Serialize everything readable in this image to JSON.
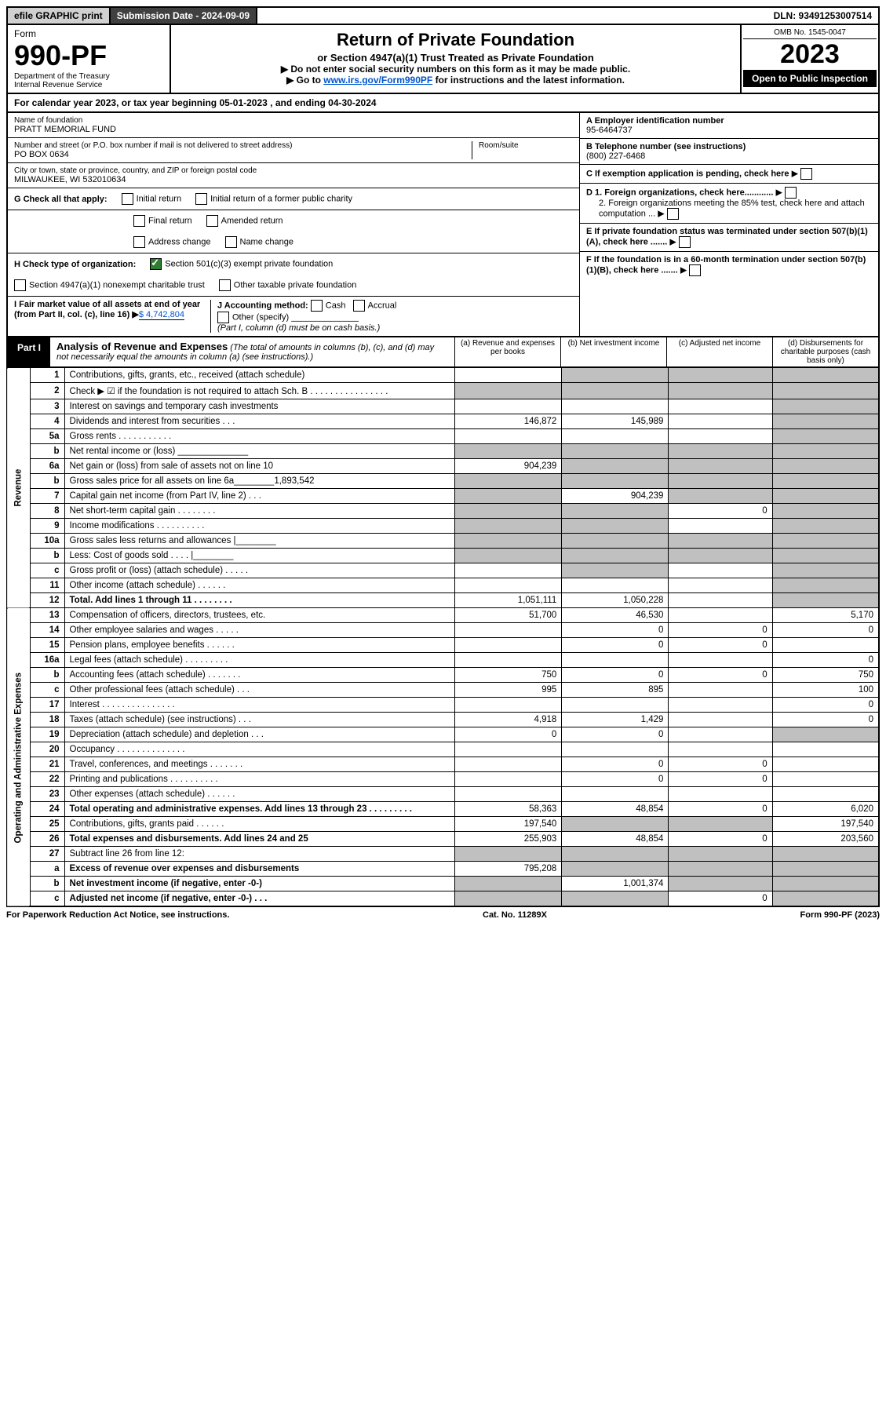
{
  "topbar": {
    "efile": "efile GRAPHIC print",
    "subm_label": "Submission Date - 2024-09-09",
    "dln": "DLN: 93491253007514"
  },
  "header": {
    "form_word": "Form",
    "form_num": "990-PF",
    "dept": "Department of the Treasury",
    "irs": "Internal Revenue Service",
    "title": "Return of Private Foundation",
    "subtitle": "or Section 4947(a)(1) Trust Treated as Private Foundation",
    "warn1": "▶ Do not enter social security numbers on this form as it may be made public.",
    "warn2_pre": "▶ Go to ",
    "warn2_link": "www.irs.gov/Form990PF",
    "warn2_post": " for instructions and the latest information.",
    "omb": "OMB No. 1545-0047",
    "year": "2023",
    "open_pub": "Open to Public Inspection"
  },
  "calyear": "For calendar year 2023, or tax year beginning 05-01-2023            , and ending 04-30-2024",
  "info": {
    "name_lbl": "Name of foundation",
    "name": "PRATT MEMORIAL FUND",
    "addr_lbl": "Number and street (or P.O. box number if mail is not delivered to street address)",
    "addr": "PO BOX 0634",
    "room_lbl": "Room/suite",
    "city_lbl": "City or town, state or province, country, and ZIP or foreign postal code",
    "city": "MILWAUKEE, WI  532010634",
    "a_lbl": "A Employer identification number",
    "a_val": "95-6464737",
    "b_lbl": "B Telephone number (see instructions)",
    "b_val": "(800) 227-6468",
    "c_lbl": "C If exemption application is pending, check here",
    "d1": "D 1. Foreign organizations, check here............",
    "d2": "2. Foreign organizations meeting the 85% test, check here and attach computation ...",
    "e": "E  If private foundation status was terminated under section 507(b)(1)(A), check here .......",
    "f": "F  If the foundation is in a 60-month termination under section 507(b)(1)(B), check here .......",
    "g_lbl": "G Check all that apply:",
    "g_opts": [
      "Initial return",
      "Initial return of a former public charity",
      "Final return",
      "Amended return",
      "Address change",
      "Name change"
    ],
    "h_lbl": "H Check type of organization:",
    "h1": "Section 501(c)(3) exempt private foundation",
    "h2": "Section 4947(a)(1) nonexempt charitable trust",
    "h3": "Other taxable private foundation",
    "i_lbl": "I Fair market value of all assets at end of year (from Part II, col. (c), line 16)",
    "i_val": "$  4,742,804",
    "j_lbl": "J Accounting method:",
    "j_opts": [
      "Cash",
      "Accrual"
    ],
    "j_other": "Other (specify)",
    "j_note": "(Part I, column (d) must be on cash basis.)"
  },
  "part1": {
    "tag": "Part I",
    "title": "Analysis of Revenue and Expenses",
    "subtitle": "(The total of amounts in columns (b), (c), and (d) may not necessarily equal the amounts in column (a) (see instructions).)",
    "cols": [
      "(a)   Revenue and expenses per books",
      "(b)   Net investment income",
      "(c)   Adjusted net income",
      "(d)   Disbursements for charitable purposes (cash basis only)"
    ]
  },
  "sections": {
    "rev": "Revenue",
    "ops": "Operating and Administrative Expenses"
  },
  "rows": [
    {
      "n": "1",
      "d": "Contributions, gifts, grants, etc., received (attach schedule)",
      "a": "",
      "b": "g",
      "c": "g",
      "dd": "g"
    },
    {
      "n": "2",
      "d": "Check ▶ ☑ if the foundation is not required to attach Sch. B      .  .  .  .  .  .  .  .  .  .  .  .  .  .  .  .",
      "a": "g",
      "b": "g",
      "c": "g",
      "dd": "g"
    },
    {
      "n": "3",
      "d": "Interest on savings and temporary cash investments",
      "a": "",
      "b": "",
      "c": "",
      "dd": "g"
    },
    {
      "n": "4",
      "d": "Dividends and interest from securities    .    .    .",
      "a": "146,872",
      "b": "145,989",
      "c": "",
      "dd": "g"
    },
    {
      "n": "5a",
      "d": "Gross rents     .    .    .    .    .    .    .    .    .    .    .",
      "a": "",
      "b": "",
      "c": "",
      "dd": "g"
    },
    {
      "n": "b",
      "d": "Net rental income or (loss)  ______________",
      "a": "g",
      "b": "g",
      "c": "g",
      "dd": "g"
    },
    {
      "n": "6a",
      "d": "Net gain or (loss) from sale of assets not on line 10",
      "a": "904,239",
      "b": "g",
      "c": "g",
      "dd": "g"
    },
    {
      "n": "b",
      "d": "Gross sales price for all assets on line 6a________1,893,542",
      "a": "g",
      "b": "g",
      "c": "g",
      "dd": "g"
    },
    {
      "n": "7",
      "d": "Capital gain net income (from Part IV, line 2)   .   .   .",
      "a": "g",
      "b": "904,239",
      "c": "g",
      "dd": "g"
    },
    {
      "n": "8",
      "d": "Net short-term capital gain  .   .   .   .   .   .   .   .",
      "a": "g",
      "b": "g",
      "c": "0",
      "dd": "g"
    },
    {
      "n": "9",
      "d": "Income modifications .   .   .   .   .   .   .   .   .   .",
      "a": "g",
      "b": "g",
      "c": "",
      "dd": "g"
    },
    {
      "n": "10a",
      "d": "Gross sales less returns and allowances  |________",
      "a": "g",
      "b": "g",
      "c": "g",
      "dd": "g"
    },
    {
      "n": "b",
      "d": "Less: Cost of goods sold    .   .   .   .   |________",
      "a": "g",
      "b": "g",
      "c": "g",
      "dd": "g"
    },
    {
      "n": "c",
      "d": "Gross profit or (loss) (attach schedule)   .   .   .   .   .",
      "a": "",
      "b": "g",
      "c": "",
      "dd": "g"
    },
    {
      "n": "11",
      "d": "Other income (attach schedule)   .   .   .   .   .   .",
      "a": "",
      "b": "",
      "c": "",
      "dd": "g"
    },
    {
      "n": "12",
      "d": "Total. Add lines 1 through 11  .   .   .   .   .   .   .   .",
      "a": "1,051,111",
      "b": "1,050,228",
      "c": "",
      "dd": "g",
      "bold": true
    },
    {
      "n": "13",
      "d": "Compensation of officers, directors, trustees, etc.",
      "a": "51,700",
      "b": "46,530",
      "c": "",
      "dd": "5,170"
    },
    {
      "n": "14",
      "d": "Other employee salaries and wages   .   .   .   .   .",
      "a": "",
      "b": "0",
      "c": "0",
      "dd": "0"
    },
    {
      "n": "15",
      "d": "Pension plans, employee benefits  .   .   .   .   .   .",
      "a": "",
      "b": "0",
      "c": "0",
      "dd": ""
    },
    {
      "n": "16a",
      "d": "Legal fees (attach schedule) .   .   .   .   .   .   .   .   .",
      "a": "",
      "b": "",
      "c": "",
      "dd": "0"
    },
    {
      "n": "b",
      "d": "Accounting fees (attach schedule) .   .   .   .   .   .   .",
      "a": "750",
      "b": "0",
      "c": "0",
      "dd": "750"
    },
    {
      "n": "c",
      "d": "Other professional fees (attach schedule)   .   .   .",
      "a": "995",
      "b": "895",
      "c": "",
      "dd": "100"
    },
    {
      "n": "17",
      "d": "Interest .   .   .   .   .   .   .   .   .   .   .   .   .   .   .",
      "a": "",
      "b": "",
      "c": "",
      "dd": "0"
    },
    {
      "n": "18",
      "d": "Taxes (attach schedule) (see instructions)    .   .   .",
      "a": "4,918",
      "b": "1,429",
      "c": "",
      "dd": "0"
    },
    {
      "n": "19",
      "d": "Depreciation (attach schedule) and depletion   .   .   .",
      "a": "0",
      "b": "0",
      "c": "",
      "dd": "g"
    },
    {
      "n": "20",
      "d": "Occupancy .   .   .   .   .   .   .   .   .   .   .   .   .   .",
      "a": "",
      "b": "",
      "c": "",
      "dd": ""
    },
    {
      "n": "21",
      "d": "Travel, conferences, and meetings .   .   .   .   .   .   .",
      "a": "",
      "b": "0",
      "c": "0",
      "dd": ""
    },
    {
      "n": "22",
      "d": "Printing and publications .   .   .   .   .   .   .   .   .   .",
      "a": "",
      "b": "0",
      "c": "0",
      "dd": ""
    },
    {
      "n": "23",
      "d": "Other expenses (attach schedule)  .   .   .   .   .   .",
      "a": "",
      "b": "",
      "c": "",
      "dd": ""
    },
    {
      "n": "24",
      "d": "Total operating and administrative expenses. Add lines 13 through 23  .   .   .   .   .   .   .   .   .",
      "a": "58,363",
      "b": "48,854",
      "c": "0",
      "dd": "6,020",
      "bold": true
    },
    {
      "n": "25",
      "d": "Contributions, gifts, grants paid    .   .   .   .   .   .",
      "a": "197,540",
      "b": "g",
      "c": "g",
      "dd": "197,540"
    },
    {
      "n": "26",
      "d": "Total expenses and disbursements. Add lines 24 and 25",
      "a": "255,903",
      "b": "48,854",
      "c": "0",
      "dd": "203,560",
      "bold": true
    },
    {
      "n": "27",
      "d": "Subtract line 26 from line 12:",
      "a": "g",
      "b": "g",
      "c": "g",
      "dd": "g"
    },
    {
      "n": "a",
      "d": "Excess of revenue over expenses and disbursements",
      "a": "795,208",
      "b": "g",
      "c": "g",
      "dd": "g",
      "bold": true
    },
    {
      "n": "b",
      "d": "Net investment income (if negative, enter -0-)",
      "a": "g",
      "b": "1,001,374",
      "c": "g",
      "dd": "g",
      "bold": true
    },
    {
      "n": "c",
      "d": "Adjusted net income (if negative, enter -0-)   .   .   .",
      "a": "g",
      "b": "g",
      "c": "0",
      "dd": "g",
      "bold": true
    }
  ],
  "footer": {
    "left": "For Paperwork Reduction Act Notice, see instructions.",
    "mid": "Cat. No. 11289X",
    "right": "Form 990-PF (2023)"
  }
}
